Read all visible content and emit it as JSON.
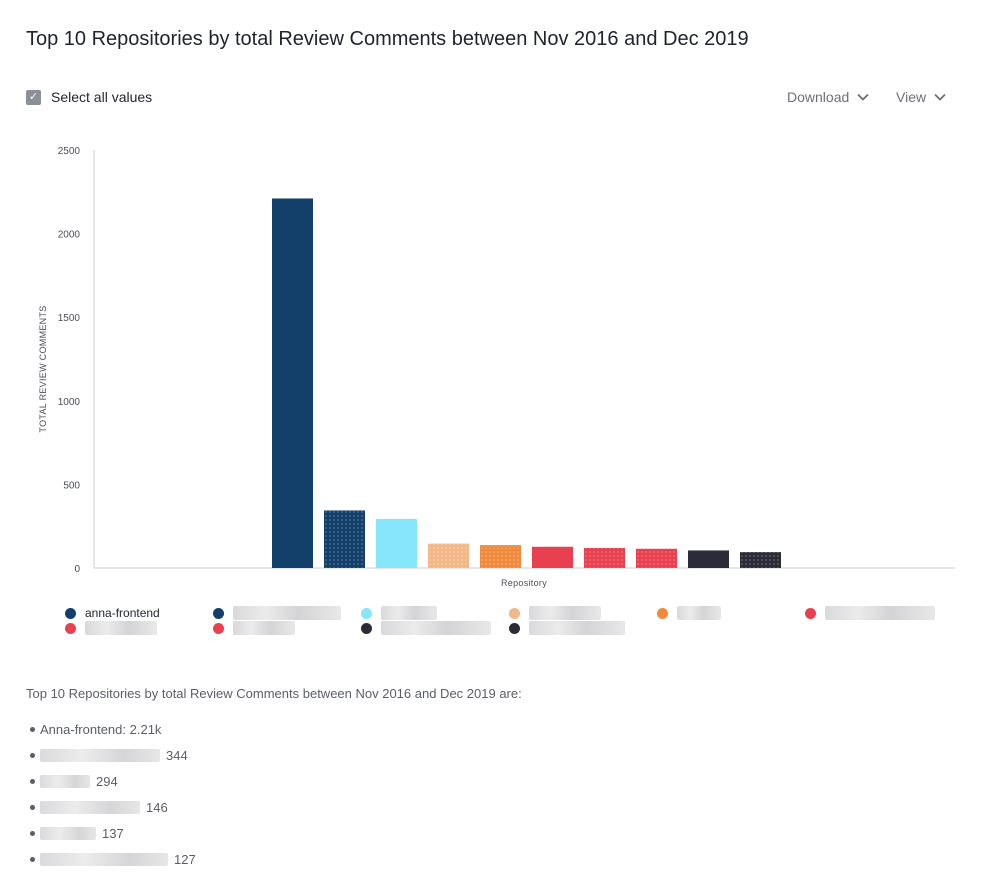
{
  "title": "Top 10 Repositories by total Review Comments between Nov 2016 and Dec 2019",
  "controls": {
    "select_all_label": "Select all values",
    "download_label": "Download",
    "view_label": "View"
  },
  "chart_data": {
    "type": "bar",
    "ylabel": "TOTAL REVIEW COMMENTS",
    "xlabel": "Repository",
    "ylim": [
      0,
      2500
    ],
    "yticks": [
      0,
      500,
      1000,
      1500,
      2000,
      2500
    ],
    "grid": false,
    "legend_position": "bottom",
    "categories": [
      "anna-frontend",
      "",
      "",
      "",
      "",
      "",
      "",
      "",
      "",
      ""
    ],
    "values": [
      2210,
      344,
      294,
      146,
      137,
      127,
      120,
      115,
      105,
      95
    ],
    "colors": [
      "#12406b",
      "#12406b",
      "#86e6fb",
      "#f1b786",
      "#f08a3c",
      "#e8404f",
      "#e8404f",
      "#e8404f",
      "#2c2c38",
      "#2c2c38"
    ],
    "patterns": [
      "solid",
      "dots",
      "solid",
      "dots",
      "dots",
      "solid",
      "dots",
      "dots",
      "solid",
      "dots"
    ]
  },
  "legend": [
    {
      "label": "anna-frontend",
      "color": "#12406b"
    },
    {
      "label": "",
      "color": "#12406b"
    },
    {
      "label": "",
      "color": "#86e6fb"
    },
    {
      "label": "",
      "color": "#f1b786"
    },
    {
      "label": "",
      "color": "#f08a3c"
    },
    {
      "label": "",
      "color": "#e8404f"
    },
    {
      "label": "",
      "color": "#e8404f"
    },
    {
      "label": "",
      "color": "#e8404f"
    },
    {
      "label": "",
      "color": "#2c2c38"
    },
    {
      "label": "",
      "color": "#2c2c38"
    }
  ],
  "summary": {
    "intro": "Top 10 Repositories by total Review Comments between Nov 2016 and Dec 2019 are:",
    "items": [
      {
        "text": "Anna-frontend: 2.21k",
        "value": ""
      },
      {
        "text": "",
        "value": "344"
      },
      {
        "text": "",
        "value": "294"
      },
      {
        "text": "",
        "value": "146"
      },
      {
        "text": "",
        "value": "137"
      },
      {
        "text": "",
        "value": "127"
      }
    ]
  }
}
